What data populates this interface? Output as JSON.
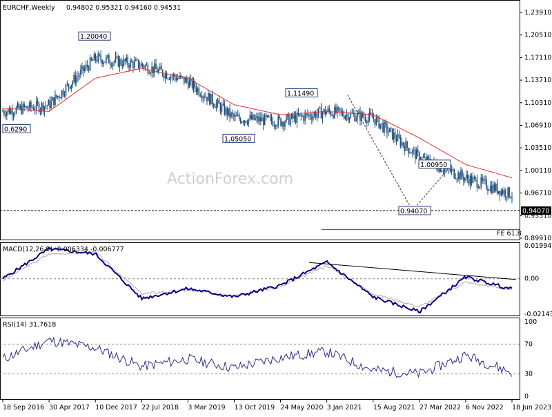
{
  "header": {
    "symbol": "EURCHF,Weekly",
    "ohlc": "0.94802 0.95321 0.94160 0.94531"
  },
  "watermark": "ActionForex.com",
  "price_axis": {
    "ticks": [
      "1.23910",
      "1.20510",
      "1.17110",
      "1.13710",
      "1.10310",
      "1.06910",
      "1.03510",
      "1.00110",
      "0.96710",
      "0.93310",
      "0.89910"
    ]
  },
  "current_price_label": "0.94070",
  "annotations": [
    "0.6290",
    "1.20040",
    "1.05050",
    "1.11490",
    "1.00950",
    "0.94070"
  ],
  "fe_label": "FE 61.8",
  "macd": {
    "label": "MACD(12,26,9) -0.006334 -0.006777",
    "ticks": [
      "0.019943",
      "0.00",
      "-0.021434"
    ]
  },
  "rsi": {
    "label": "RSI(14) 31.7618",
    "ticks": [
      "100",
      "70",
      "30",
      "0"
    ]
  },
  "x_axis": {
    "labels": [
      "18 Sep 2016",
      "30 Apr 2017",
      "10 Dec 2017",
      "22 Jul 2018",
      "3 Mar 2019",
      "13 Oct 2019",
      "24 May 2020",
      "3 Jan 2021",
      "15 Aug 2021",
      "27 Mar 2022",
      "6 Nov 2022",
      "18 Jun 2023"
    ]
  },
  "colors": {
    "candle": "#1f4e79",
    "ma": "#e03030",
    "macd": "#000080",
    "signal": "#c0a0a0",
    "rsi": "#2a2a8a",
    "grid": "#c8c8c8"
  },
  "chart_data": [
    {
      "type": "line",
      "title": "EURCHF,Weekly",
      "x": [
        "18 Sep 2016",
        "30 Apr 2017",
        "10 Dec 2017",
        "22 Jul 2018",
        "3 Mar 2019",
        "13 Oct 2019",
        "24 May 2020",
        "3 Jan 2021",
        "15 Aug 2021",
        "27 Mar 2022",
        "6 Nov 2022",
        "18 Jun 2023"
      ],
      "series": [
        {
          "values": [
            1.09,
            1.1,
            1.17,
            1.16,
            1.135,
            1.08,
            1.075,
            1.09,
            1.08,
            1.02,
            0.99,
            0.965
          ]
        },
        {
          "values": [
            1.095,
            1.09,
            1.14,
            1.155,
            1.14,
            1.1,
            1.085,
            1.09,
            1.085,
            1.05,
            1.01,
            0.99
          ]
        }
      ],
      "ylim": [
        0.8991,
        1.2391
      ],
      "annotations": [
        {
          "label": "1.20040",
          "x": "10 Dec 2017",
          "y": 1.2004
        },
        {
          "label": "1.05050",
          "x": "13 Oct 2019",
          "y": 1.0505
        },
        {
          "label": "1.11490",
          "x": "3 Jan 2021",
          "y": 1.1149
        },
        {
          "label": "1.00950",
          "x": "6 Nov 2022",
          "y": 1.0095
        },
        {
          "label": "0.94070",
          "x": "27 Mar 2022",
          "y": 0.9407
        },
        {
          "label": "FE 61.8",
          "y": 0.912
        }
      ],
      "grid": false
    },
    {
      "type": "line",
      "title": "MACD(12,26,9) -0.006334 -0.006777",
      "x": [
        "18 Sep 2016",
        "30 Apr 2017",
        "10 Dec 2017",
        "22 Jul 2018",
        "3 Mar 2019",
        "13 Oct 2019",
        "24 May 2020",
        "3 Jan 2021",
        "15 Aug 2021",
        "27 Mar 2022",
        "6 Nov 2022",
        "18 Jun 2023"
      ],
      "series": [
        {
          "values": [
            0.0,
            0.018,
            0.015,
            -0.012,
            -0.006,
            -0.011,
            -0.004,
            0.01,
            -0.011,
            -0.02,
            0.001,
            -0.0063
          ]
        },
        {
          "values": [
            -0.001,
            0.015,
            0.016,
            -0.009,
            -0.007,
            -0.01,
            -0.005,
            0.008,
            -0.009,
            -0.017,
            -0.002,
            -0.0068
          ]
        }
      ],
      "ylim": [
        -0.0214,
        0.0199
      ],
      "grid": false
    },
    {
      "type": "line",
      "title": "RSI(14) 31.7618",
      "x": [
        "18 Sep 2016",
        "30 Apr 2017",
        "10 Dec 2017",
        "22 Jul 2018",
        "3 Mar 2019",
        "13 Oct 2019",
        "24 May 2020",
        "3 Jan 2021",
        "15 Aug 2021",
        "27 Mar 2022",
        "6 Nov 2022",
        "18 Jun 2023"
      ],
      "series": [
        {
          "values": [
            50,
            75,
            65,
            40,
            50,
            38,
            52,
            60,
            35,
            30,
            55,
            31.76
          ]
        }
      ],
      "ylim": [
        0,
        100
      ],
      "grid": false
    }
  ]
}
